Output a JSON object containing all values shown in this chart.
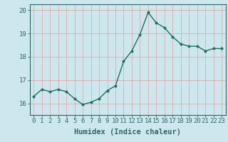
{
  "x": [
    0,
    1,
    2,
    3,
    4,
    5,
    6,
    7,
    8,
    9,
    10,
    11,
    12,
    13,
    14,
    15,
    16,
    17,
    18,
    19,
    20,
    21,
    22,
    23
  ],
  "y": [
    16.3,
    16.6,
    16.5,
    16.6,
    16.5,
    16.2,
    15.95,
    16.05,
    16.2,
    16.55,
    16.75,
    17.8,
    18.25,
    18.95,
    19.9,
    19.45,
    19.25,
    18.85,
    18.55,
    18.45,
    18.45,
    18.25,
    18.35,
    18.35
  ],
  "line_color": "#1a7060",
  "marker_color": "#1a7060",
  "bg_color": "#cce8ee",
  "grid_color": "#ee9999",
  "xlabel": "Humidex (Indice chaleur)",
  "ylim": [
    15.5,
    20.25
  ],
  "xlim": [
    -0.5,
    23.5
  ],
  "yticks": [
    16,
    17,
    18,
    19,
    20
  ],
  "xticks": [
    0,
    1,
    2,
    3,
    4,
    5,
    6,
    7,
    8,
    9,
    10,
    11,
    12,
    13,
    14,
    15,
    16,
    17,
    18,
    19,
    20,
    21,
    22,
    23
  ],
  "xlabel_fontsize": 7.5,
  "tick_fontsize": 6.5,
  "line_width": 1.0,
  "marker_size": 2.5,
  "spine_color": "#336666"
}
